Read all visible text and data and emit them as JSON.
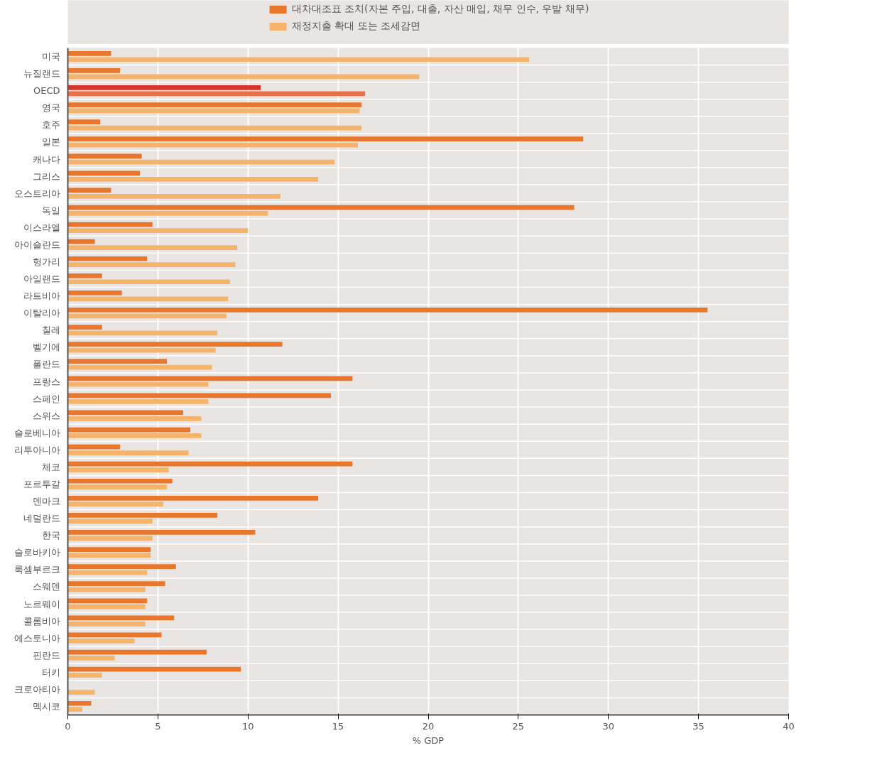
{
  "chart_data": {
    "type": "bar",
    "orientation": "horizontal",
    "xlabel": "% GDP",
    "categories": [
      "미국",
      "뉴질랜드",
      "OECD",
      "영국",
      "호주",
      "일본",
      "캐나다",
      "그리스",
      "오스트리아",
      "독일",
      "이스라엘",
      "아이슬란드",
      "헝가리",
      "아일랜드",
      "라트비아",
      "이탈리아",
      "칠레",
      "벨기에",
      "폴란드",
      "프랑스",
      "스페인",
      "스위스",
      "슬로베니아",
      "리투아니아",
      "체코",
      "포르투갈",
      "덴마크",
      "네덜란드",
      "한국",
      "슬로바키아",
      "룩셈부르크",
      "스웨덴",
      "노르웨이",
      "콜롬비아",
      "에스토니아",
      "핀란드",
      "터키",
      "크로아티아",
      "멕시코"
    ],
    "series": [
      {
        "name": "대차대조표 조치(자본 주입, 대출, 자산 매입, 채무 인수, 우발 채무)",
        "color": "#e8762c",
        "colors": [
          "#e8762c",
          "#e8762c",
          "#d9342b",
          "#e8762c",
          "#e8762c",
          "#e8762c",
          "#e8762c",
          "#e8762c",
          "#e8762c",
          "#e8762c",
          "#e8762c",
          "#e8762c",
          "#e8762c",
          "#e8762c",
          "#e8762c",
          "#e8762c",
          "#e8762c",
          "#e8762c",
          "#e8762c",
          "#e8762c",
          "#e8762c",
          "#e8762c",
          "#e8762c",
          "#e8762c",
          "#e8762c",
          "#e8762c",
          "#e8762c",
          "#e8762c",
          "#e8762c",
          "#e8762c",
          "#e8762c",
          "#e8762c",
          "#e8762c",
          "#e8762c",
          "#e8762c",
          "#e8762c",
          "#e8762c",
          "#e8762c",
          "#e8762c"
        ],
        "values": [
          2.4,
          2.9,
          10.7,
          16.3,
          1.8,
          28.6,
          4.1,
          4.0,
          2.4,
          28.1,
          4.7,
          1.5,
          4.4,
          1.9,
          3.0,
          35.5,
          1.9,
          11.9,
          5.5,
          15.8,
          14.6,
          6.4,
          6.8,
          2.9,
          15.8,
          5.8,
          13.9,
          8.3,
          10.4,
          4.6,
          6.0,
          5.4,
          4.4,
          5.9,
          5.2,
          7.7,
          9.6,
          null,
          1.3
        ]
      },
      {
        "name": "재정지출 확대 또는 조세감면",
        "color": "#f5b36b",
        "colors": [
          "#f5b36b",
          "#f5b36b",
          "#eb7046",
          "#f5b36b",
          "#f5b36b",
          "#f5b36b",
          "#f5b36b",
          "#f5b36b",
          "#f5b36b",
          "#f5b36b",
          "#f5b36b",
          "#f5b36b",
          "#f5b36b",
          "#f5b36b",
          "#f5b36b",
          "#f5b36b",
          "#f5b36b",
          "#f5b36b",
          "#f5b36b",
          "#f5b36b",
          "#f5b36b",
          "#f5b36b",
          "#f5b36b",
          "#f5b36b",
          "#f5b36b",
          "#f5b36b",
          "#f5b36b",
          "#f5b36b",
          "#f5b36b",
          "#f5b36b",
          "#f5b36b",
          "#f5b36b",
          "#f5b36b",
          "#f5b36b",
          "#f5b36b",
          "#f5b36b",
          "#f5b36b",
          "#f5b36b",
          "#f5b36b"
        ],
        "values": [
          25.6,
          19.5,
          16.5,
          16.2,
          16.3,
          16.1,
          14.8,
          13.9,
          11.8,
          11.1,
          10.0,
          9.4,
          9.3,
          9.0,
          8.9,
          8.8,
          8.3,
          8.2,
          8.0,
          7.8,
          7.8,
          7.4,
          7.4,
          6.7,
          5.6,
          5.5,
          5.3,
          4.7,
          4.7,
          4.6,
          4.4,
          4.3,
          4.3,
          4.3,
          3.7,
          2.6,
          1.9,
          1.5,
          0.8
        ]
      }
    ],
    "xlim": [
      0,
      40
    ],
    "xticks": [
      0,
      5,
      10,
      15,
      20,
      25,
      30,
      35,
      40
    ],
    "grid": "x",
    "legend": "top"
  }
}
